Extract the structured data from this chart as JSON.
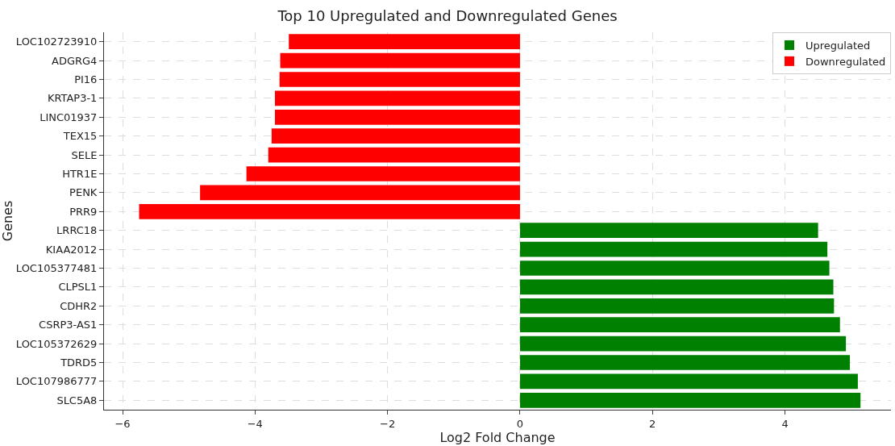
{
  "chart_data": {
    "type": "bar",
    "orientation": "horizontal",
    "title": "Top 10 Upregulated and Downregulated Genes",
    "xlabel": "Log2 Fold Change",
    "ylabel": "Genes",
    "categories": [
      "LOC102723910",
      "ADGRG4",
      "PI16",
      "KRTAP3-1",
      "LINC01937",
      "TEX15",
      "SELE",
      "HTR1E",
      "PENK",
      "PRR9",
      "LRRC18",
      "KIAA2012",
      "LOC105377481",
      "CLPSL1",
      "CDHR2",
      "CSRP3-AS1",
      "LOC105372629",
      "TDRD5",
      "LOC107986777",
      "SLC5A8"
    ],
    "series": [
      {
        "name": "Upregulated",
        "color": "#008000",
        "values": [
          null,
          null,
          null,
          null,
          null,
          null,
          null,
          null,
          null,
          null,
          4.5,
          4.64,
          4.67,
          4.73,
          4.74,
          4.83,
          4.92,
          4.98,
          5.1,
          5.14
        ]
      },
      {
        "name": "Downregulated",
        "color": "#ff0000",
        "values": [
          -3.49,
          -3.62,
          -3.63,
          -3.7,
          -3.7,
          -3.75,
          -3.8,
          -4.13,
          -4.83,
          -5.75,
          null,
          null,
          null,
          null,
          null,
          null,
          null,
          null,
          null,
          null
        ]
      }
    ],
    "xlim": [
      -6.28,
      5.6
    ],
    "xticks": [
      {
        "value": -6,
        "label": "−6"
      },
      {
        "value": -4,
        "label": "−4"
      },
      {
        "value": -2,
        "label": "−2"
      },
      0,
      2,
      4
    ],
    "grid": true,
    "legend": "top right"
  }
}
